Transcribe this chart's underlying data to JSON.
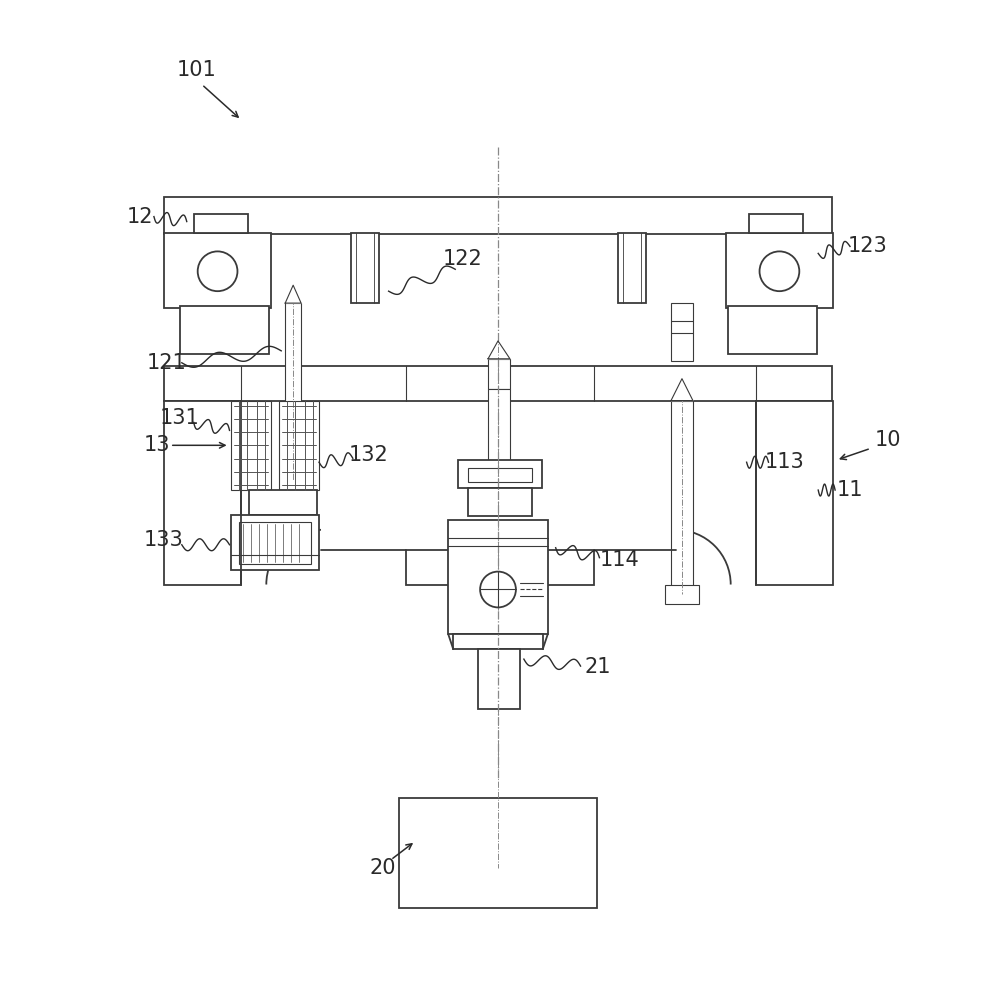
{
  "bg_color": "#ffffff",
  "lc": "#3a3a3a",
  "lc2": "#2a2a2a",
  "fig_w": 9.97,
  "fig_h": 10.0,
  "lw": 1.3,
  "lw_thin": 0.8,
  "lw_detail": 0.6
}
